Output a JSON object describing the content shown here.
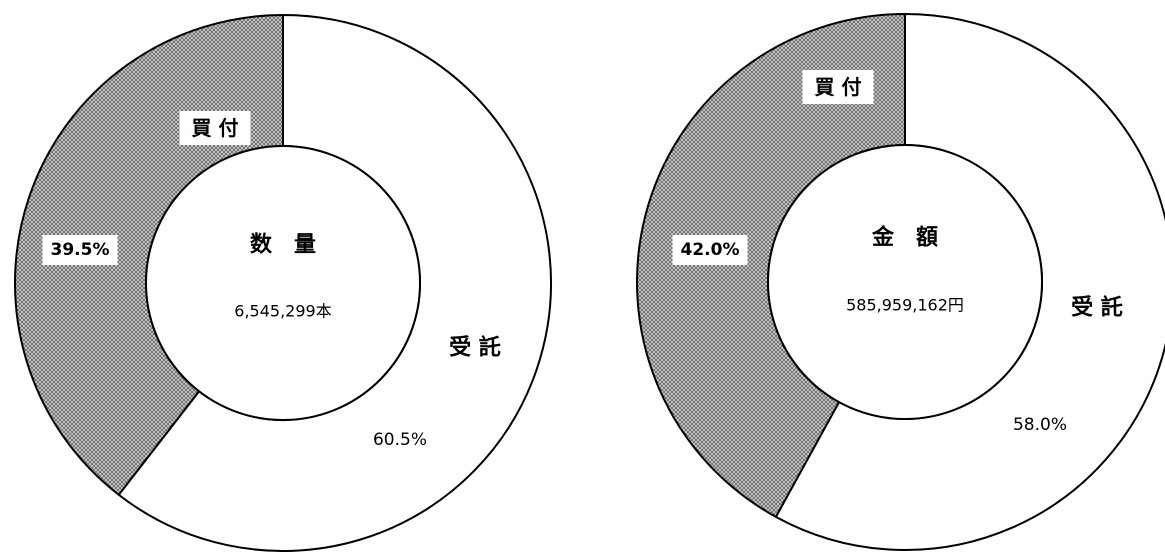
{
  "chart_data": [
    {
      "type": "pie",
      "variant": "donut",
      "center_title": "数　量",
      "center_total": "6,545,299本",
      "slices": [
        {
          "label": "受 託",
          "value": 60.5,
          "value_label": "60.5%",
          "fill": "white"
        },
        {
          "label": "買 付",
          "value": 39.5,
          "value_label": "39.5%",
          "fill": "hatched"
        }
      ]
    },
    {
      "type": "pie",
      "variant": "donut",
      "center_title": "金　額",
      "center_total": "585,959,162円",
      "slices": [
        {
          "label": "受 託",
          "value": 58.0,
          "value_label": "58.0%",
          "fill": "white"
        },
        {
          "label": "買 付",
          "value": 42.0,
          "value_label": "42.0%",
          "fill": "hatched"
        }
      ]
    }
  ],
  "colors": {
    "hatch_bg": "#d0d0d0",
    "hatch_line": "#555555",
    "stroke": "#000000",
    "white": "#ffffff"
  }
}
